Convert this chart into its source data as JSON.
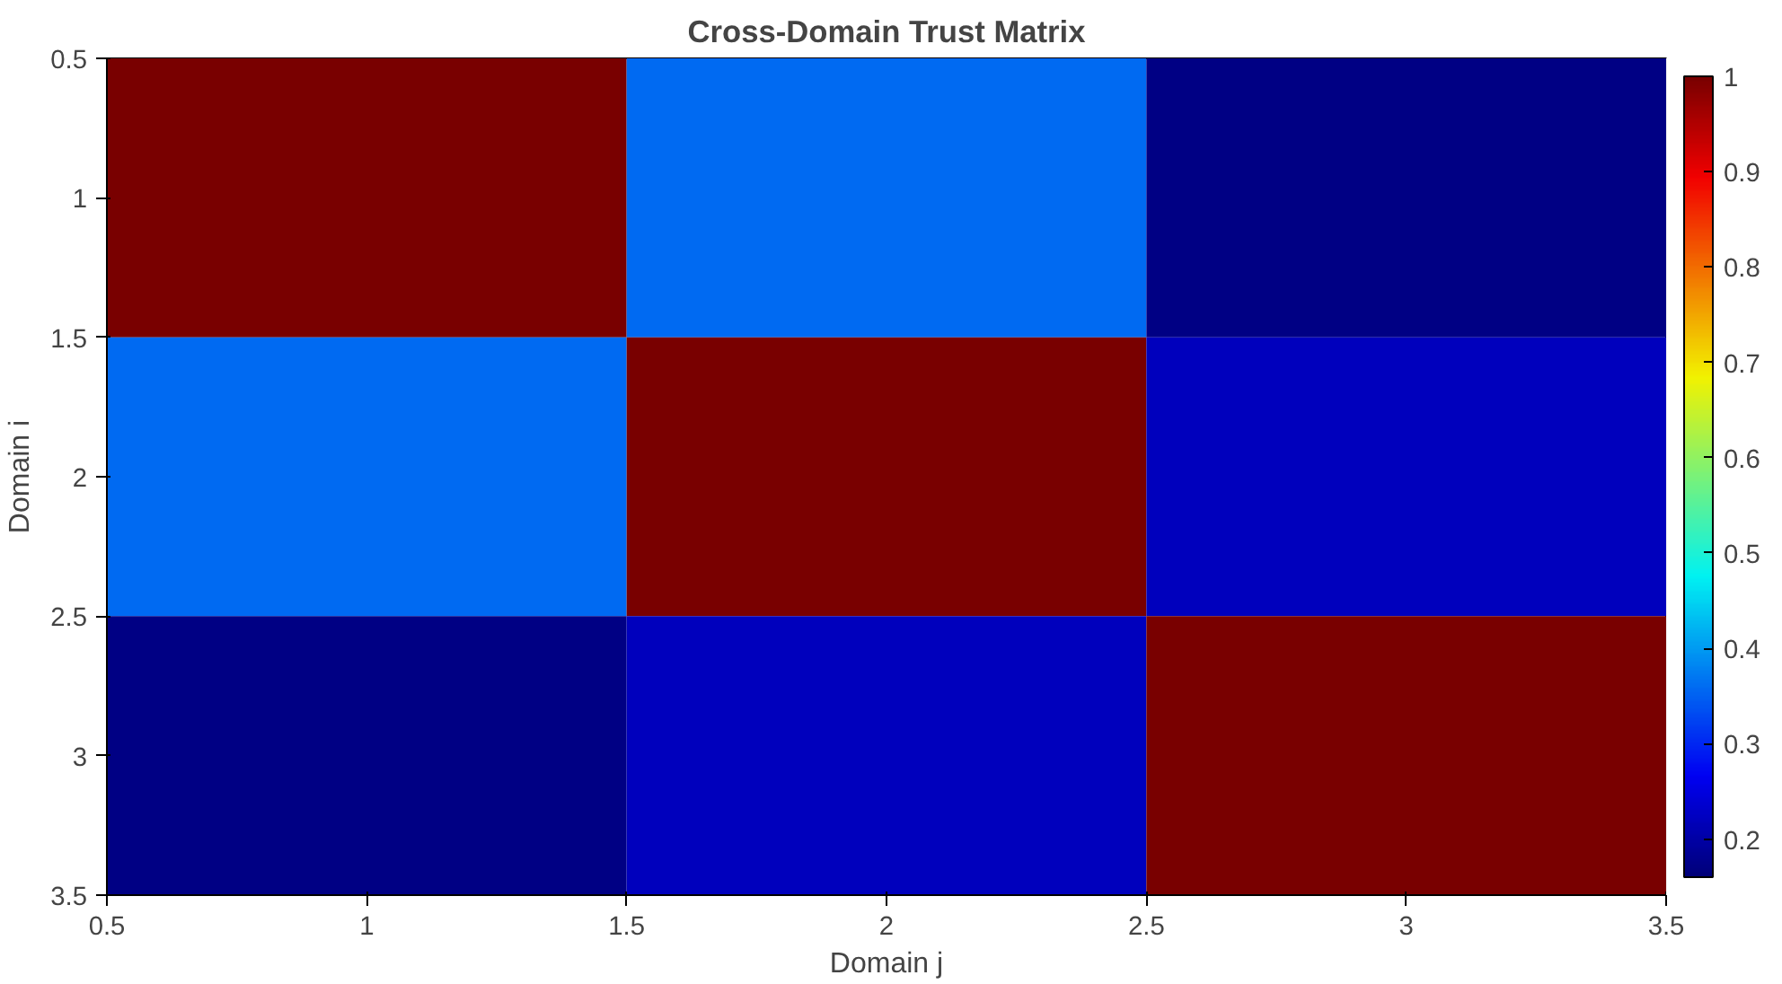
{
  "chart_data": {
    "type": "heatmap",
    "title": "Cross-Domain Trust Matrix",
    "xlabel": "Domain j",
    "ylabel": "Domain i",
    "x": [
      1,
      2,
      3
    ],
    "y": [
      1,
      2,
      3
    ],
    "cells": [
      [
        1,
        0.36,
        0.17
      ],
      [
        0.36,
        1,
        0.22
      ],
      [
        0.17,
        0.22,
        1
      ]
    ],
    "xlim": [
      0.5,
      3.5
    ],
    "xticks": [
      0.5,
      1,
      1.5,
      2,
      2.5,
      3,
      3.5
    ],
    "ylim": [
      3.5,
      0.5
    ],
    "yticks": [
      0.5,
      1,
      1.5,
      2,
      2.5,
      3,
      3.5
    ],
    "clim": [
      0.16,
      1
    ],
    "cticks": [
      0.2,
      0.3,
      0.4,
      0.5,
      0.6,
      0.7,
      0.8,
      0.9,
      1
    ]
  }
}
